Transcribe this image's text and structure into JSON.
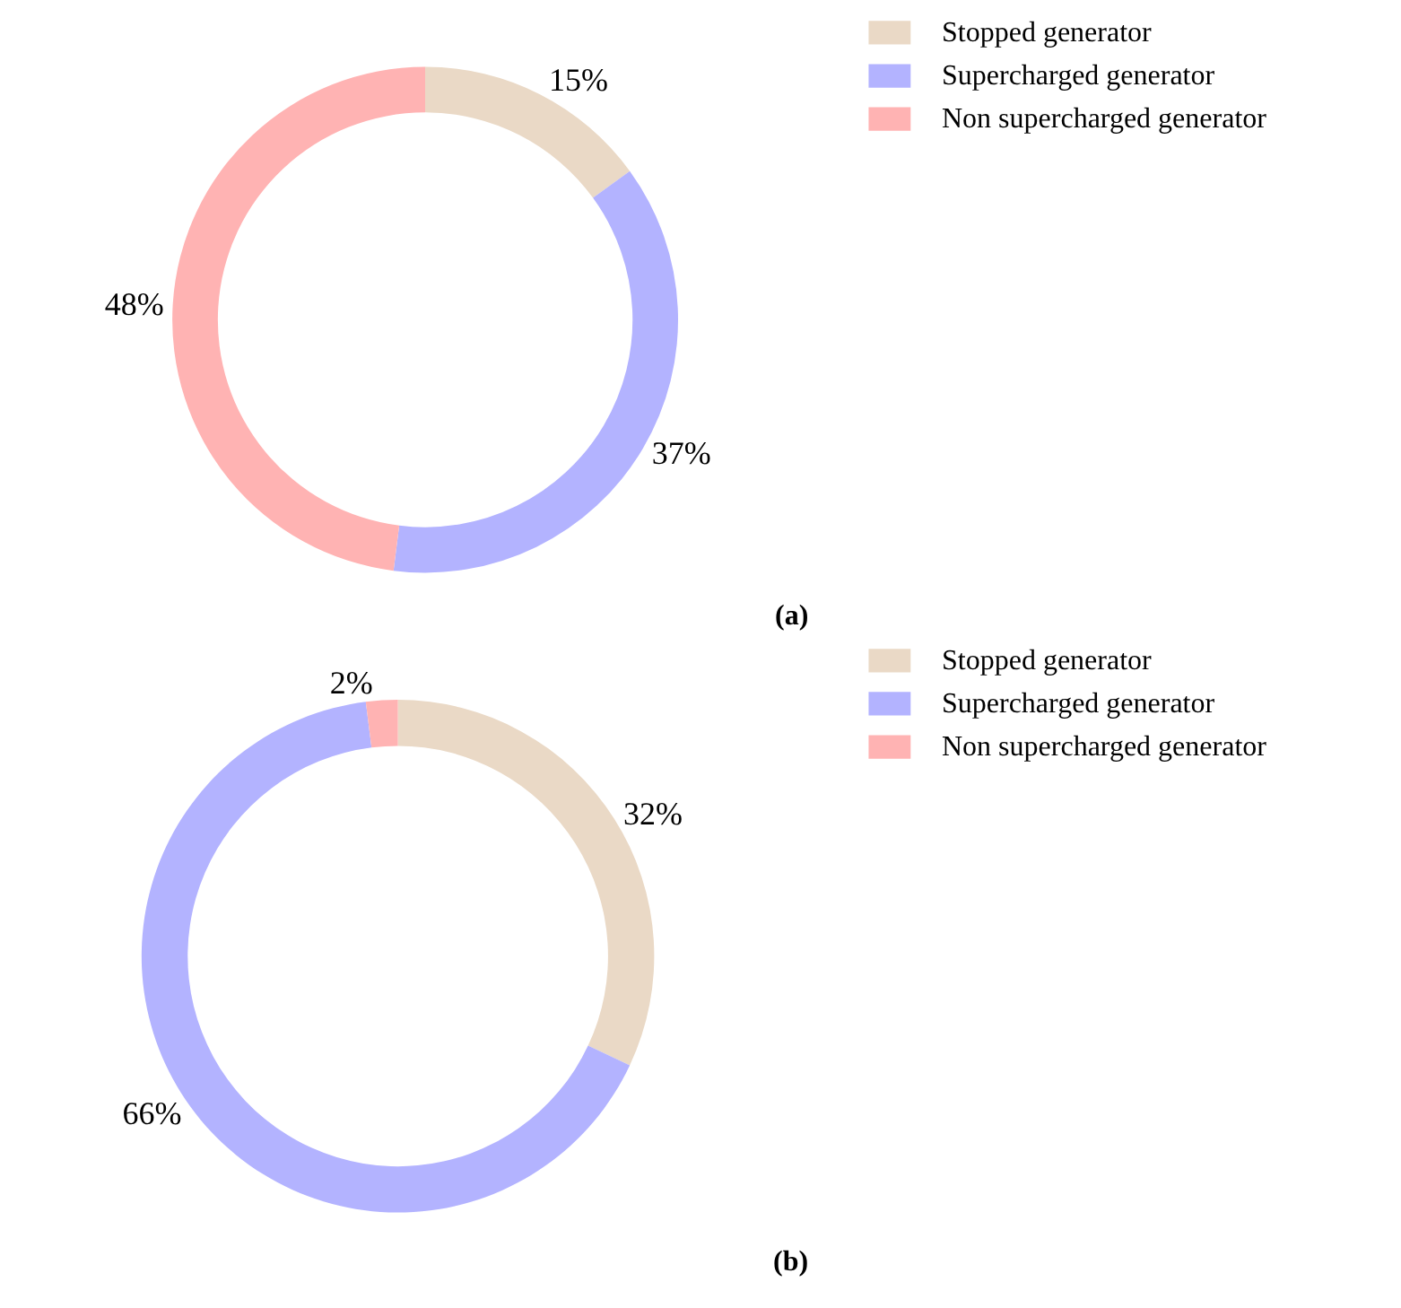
{
  "chart_data": [
    {
      "type": "donut",
      "title": "(a)",
      "categories": [
        "Stopped generator",
        "Supercharged generator",
        "Non supercharged generator"
      ],
      "values": [
        15,
        37,
        48
      ],
      "colors": [
        "#ead9c6",
        "#b3b3ff",
        "#ffb3b3"
      ],
      "value_labels": [
        "15%",
        "37%",
        "48%"
      ],
      "legend": "right"
    },
    {
      "type": "donut",
      "title": "(b)",
      "categories": [
        "Stopped generator",
        "Supercharged generator",
        "Non supercharged generator"
      ],
      "values": [
        32,
        66,
        2
      ],
      "colors": [
        "#ead9c6",
        "#b3b3ff",
        "#ffb3b3"
      ],
      "value_labels": [
        "32%",
        "66%",
        "2%"
      ],
      "legend": "right"
    }
  ]
}
